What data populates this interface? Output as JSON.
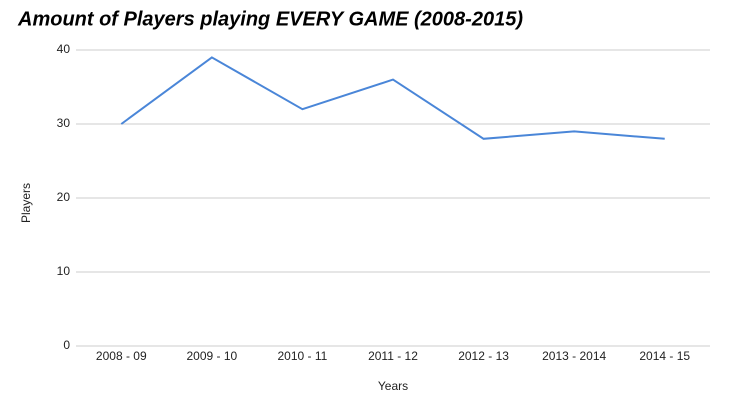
{
  "chart_data": {
    "type": "line",
    "title": "Amount of Players playing EVERY GAME (2008-2015)",
    "x_label": "Years",
    "y_label": "Players",
    "categories": [
      "2008 - 09",
      "2009 - 10",
      "2010 - 11",
      "2011 - 12",
      "2012 - 13",
      "2013 - 2014",
      "2014 - 15"
    ],
    "values": [
      30,
      39,
      32,
      36,
      28,
      29,
      28
    ],
    "color": "#4a86d8",
    "ylim": [
      0,
      40
    ],
    "yticks": [
      0,
      10,
      20,
      30,
      40
    ],
    "grid": true
  }
}
